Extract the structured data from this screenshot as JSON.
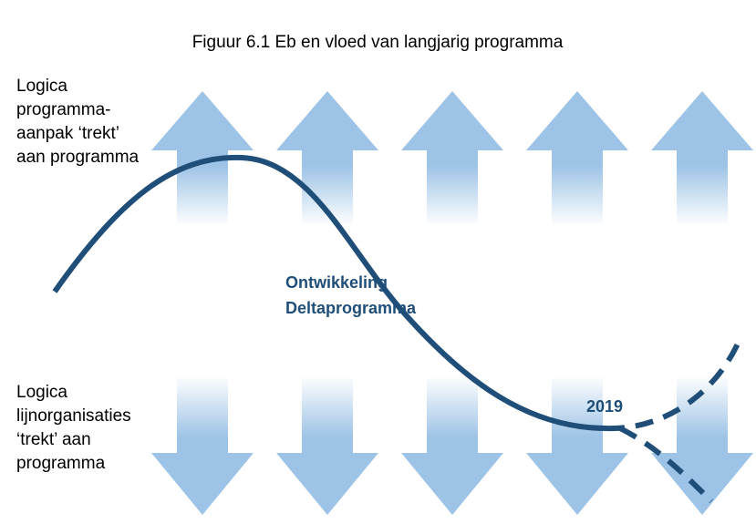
{
  "title": "Figuur 6.1 Eb en vloed van langjarig programma",
  "top_label": [
    "Logica",
    "programma-",
    "aanpak ‘trekt’",
    "aan programma"
  ],
  "bottom_label": [
    "Logica",
    "lijnorganisaties",
    "‘trekt’ aan",
    "programma"
  ],
  "curve_label": [
    "Ontwikkeling",
    "Deltaprogramma"
  ],
  "year_label": "2019"
}
